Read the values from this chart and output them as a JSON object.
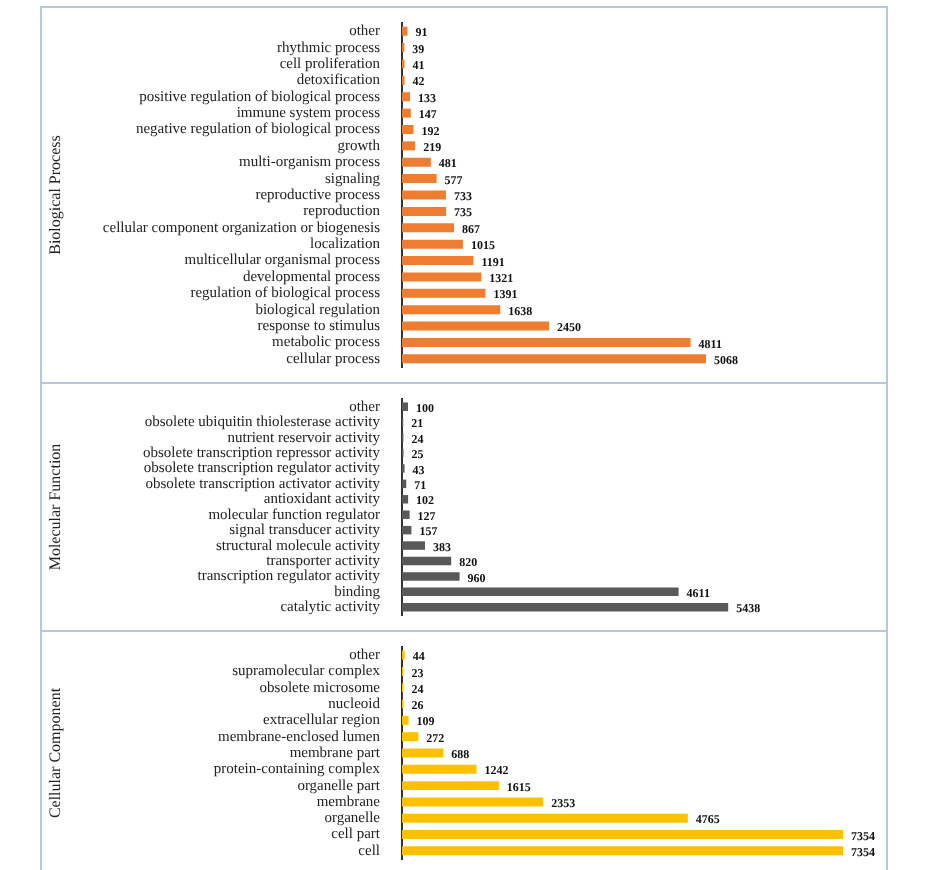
{
  "chart_data": [
    {
      "type": "bar",
      "orientation": "horizontal",
      "ylabel": "Biological Process",
      "color": "#ed7d31",
      "data_labels": true,
      "categories": [
        "other",
        "rhythmic process",
        "cell proliferation",
        "detoxification",
        "positive regulation of biological process",
        "immune system process",
        "negative regulation of biological process",
        "growth",
        "multi-organism process",
        "signaling",
        "reproductive process",
        "reproduction",
        "cellular component organization or biogenesis",
        "localization",
        "multicellular organismal process",
        "developmental process",
        "regulation of biological process",
        "biological regulation",
        "response to stimulus",
        "metabolic process",
        "cellular process"
      ],
      "values": [
        91,
        39,
        41,
        42,
        133,
        147,
        192,
        219,
        481,
        577,
        733,
        735,
        867,
        1015,
        1191,
        1321,
        1391,
        1638,
        2450,
        4811,
        5068
      ]
    },
    {
      "type": "bar",
      "orientation": "horizontal",
      "ylabel": "Molecular Function",
      "color": "#595959",
      "data_labels": true,
      "categories": [
        "other",
        "obsolete ubiquitin thiolesterase activity",
        "nutrient reservoir activity",
        "obsolete transcription repressor activity",
        "obsolete transcription regulator activity",
        "obsolete transcription activator activity",
        "antioxidant activity",
        "molecular function regulator",
        "signal transducer activity",
        "structural molecule activity",
        "transporter activity",
        "transcription regulator activity",
        "binding",
        "catalytic activity"
      ],
      "values": [
        100,
        21,
        24,
        25,
        43,
        71,
        102,
        127,
        157,
        383,
        820,
        960,
        4611,
        5438
      ]
    },
    {
      "type": "bar",
      "orientation": "horizontal",
      "ylabel": "Cellular Component",
      "color": "#ffc000",
      "data_labels": true,
      "categories": [
        "other",
        "supramolecular complex",
        "obsolete microsome",
        "nucleoid",
        "extracellular region",
        "membrane-enclosed lumen",
        "membrane part",
        "protein-containing complex",
        "organelle part",
        "membrane",
        "organelle",
        "cell part",
        "cell"
      ],
      "values": [
        44,
        23,
        24,
        26,
        109,
        272,
        688,
        1242,
        1615,
        2353,
        4765,
        7354,
        7354
      ]
    }
  ]
}
